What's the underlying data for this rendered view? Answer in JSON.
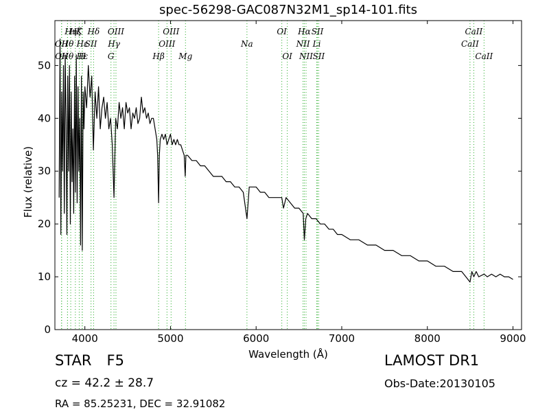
{
  "chart_data": {
    "type": "line",
    "title": "spec-56298-GAC087N32M1_sp14-101.fits",
    "xlabel": "Wavelength (Å)",
    "ylabel": "Flux (relative)",
    "xlim": [
      3650,
      9100
    ],
    "ylim": [
      0,
      58.5
    ],
    "xticks": [
      4000,
      5000,
      6000,
      7000,
      8000,
      9000
    ],
    "yticks": [
      0,
      10,
      20,
      30,
      40,
      50
    ],
    "grid": false,
    "line_color": "#000000",
    "marker_color": "#22aa22",
    "series": [
      {
        "x": [
          3700,
          3710,
          3720,
          3730,
          3740,
          3750,
          3760,
          3770,
          3780,
          3790,
          3800,
          3810,
          3820,
          3830,
          3840,
          3850,
          3860,
          3870,
          3880,
          3890,
          3900,
          3910,
          3920,
          3930,
          3940,
          3950,
          3960,
          3970,
          3980,
          3990,
          4000,
          4020,
          4040,
          4060,
          4080,
          4100,
          4120,
          4140,
          4160,
          4180,
          4200,
          4220,
          4240,
          4260,
          4280,
          4300,
          4320,
          4340,
          4360,
          4380,
          4400,
          4420,
          4440,
          4460,
          4480,
          4500,
          4520,
          4540,
          4560,
          4580,
          4600,
          4620,
          4640,
          4660,
          4680,
          4700,
          4720,
          4740,
          4760,
          4780,
          4800,
          4820,
          4840,
          4850,
          4861,
          4870,
          4880,
          4900,
          4920,
          4940,
          4960,
          4980,
          5000,
          5020,
          5040,
          5060,
          5080,
          5100,
          5120,
          5140,
          5160,
          5172,
          5180,
          5200,
          5250,
          5300,
          5350,
          5400,
          5450,
          5500,
          5550,
          5600,
          5650,
          5700,
          5750,
          5800,
          5850,
          5893,
          5920,
          5950,
          6000,
          6050,
          6100,
          6150,
          6200,
          6250,
          6300,
          6320,
          6350,
          6400,
          6450,
          6500,
          6550,
          6563,
          6580,
          6600,
          6650,
          6700,
          6750,
          6800,
          6850,
          6900,
          6950,
          7000,
          7100,
          7200,
          7300,
          7400,
          7500,
          7600,
          7700,
          7800,
          7900,
          8000,
          8100,
          8200,
          8300,
          8400,
          8450,
          8498,
          8520,
          8542,
          8570,
          8600,
          8662,
          8700,
          8750,
          8800,
          8850,
          8900,
          8950,
          9000
        ],
        "y": [
          25,
          55,
          18,
          45,
          30,
          50,
          22,
          52,
          40,
          18,
          48,
          30,
          50,
          20,
          45,
          28,
          38,
          22,
          48,
          26,
          52,
          24,
          46,
          30,
          40,
          16,
          48,
          15,
          45,
          38,
          46,
          42,
          50,
          44,
          48,
          34,
          45,
          40,
          46,
          38,
          42,
          44,
          40,
          43,
          38,
          40,
          35,
          25,
          40,
          38,
          43,
          40,
          42,
          38,
          43,
          41,
          42,
          38,
          41,
          40,
          42,
          39,
          40,
          44,
          41,
          42,
          40,
          41,
          39,
          40,
          40,
          38,
          36,
          33,
          24,
          33,
          36,
          37,
          36,
          37,
          35,
          36,
          37,
          35,
          36,
          35,
          36,
          35,
          35,
          34,
          33,
          29,
          33,
          33,
          32,
          32,
          31,
          31,
          30,
          29,
          29,
          29,
          28,
          28,
          27,
          27,
          26,
          21,
          27,
          27,
          27,
          26,
          26,
          25,
          25,
          25,
          25,
          23,
          25,
          24,
          23,
          23,
          22,
          17,
          21,
          22,
          21,
          21,
          20,
          20,
          19,
          19,
          18,
          18,
          17,
          17,
          16,
          16,
          15,
          15,
          14,
          14,
          13,
          13,
          12,
          12,
          11,
          11,
          10,
          9,
          11,
          10,
          11,
          10,
          10.5,
          10,
          10.5,
          10,
          10.5,
          10,
          10,
          9.5
        ]
      }
    ],
    "lines_top": [
      {
        "label": "Hη",
        "x": 3835
      },
      {
        "label": "Hζ",
        "x": 3889
      },
      {
        "label": "K",
        "x": 3934
      },
      {
        "label": "Hδ",
        "x": 4102
      },
      {
        "label": "OIII",
        "x": 4363
      },
      {
        "label": "OIII",
        "x": 5007
      },
      {
        "label": "OI",
        "x": 6300
      },
      {
        "label": "Hα",
        "x": 6563
      },
      {
        "label": "SII",
        "x": 6716
      },
      {
        "label": "CaII",
        "x": 8542
      }
    ],
    "lines_middle": [
      {
        "label": "OII",
        "x": 3727
      },
      {
        "label": "Hθ",
        "x": 3798
      },
      {
        "label": "Hε",
        "x": 3970
      },
      {
        "label": "SII",
        "x": 4072
      },
      {
        "label": "Hγ",
        "x": 4340
      },
      {
        "label": "OIII",
        "x": 4959
      },
      {
        "label": "Na",
        "x": 5893
      },
      {
        "label": "NII",
        "x": 6548
      },
      {
        "label": "Li",
        "x": 6708
      },
      {
        "label": "CaII",
        "x": 8498
      }
    ],
    "lines_bottom": [
      {
        "label": "OII",
        "x": 3729
      },
      {
        "label": "Hθ",
        "x": 3797
      },
      {
        "label": "H",
        "x": 3969
      },
      {
        "label": "Hε",
        "x": 3970
      },
      {
        "label": "G",
        "x": 4305
      },
      {
        "label": "Hβ",
        "x": 4861
      },
      {
        "label": "Mg",
        "x": 5175
      },
      {
        "label": "OI",
        "x": 6364
      },
      {
        "label": "NII",
        "x": 6583
      },
      {
        "label": "SII",
        "x": 6731
      },
      {
        "label": "CaII",
        "x": 8662
      }
    ]
  },
  "info": {
    "class_label": "STAR",
    "subclass_label": "F5",
    "survey": "LAMOST DR1",
    "cz_text": "cz = 42.2  ± 28.7",
    "obs_date": "Obs-Date:20130105",
    "radec": "RA = 85.25231, DEC = 32.91082"
  }
}
